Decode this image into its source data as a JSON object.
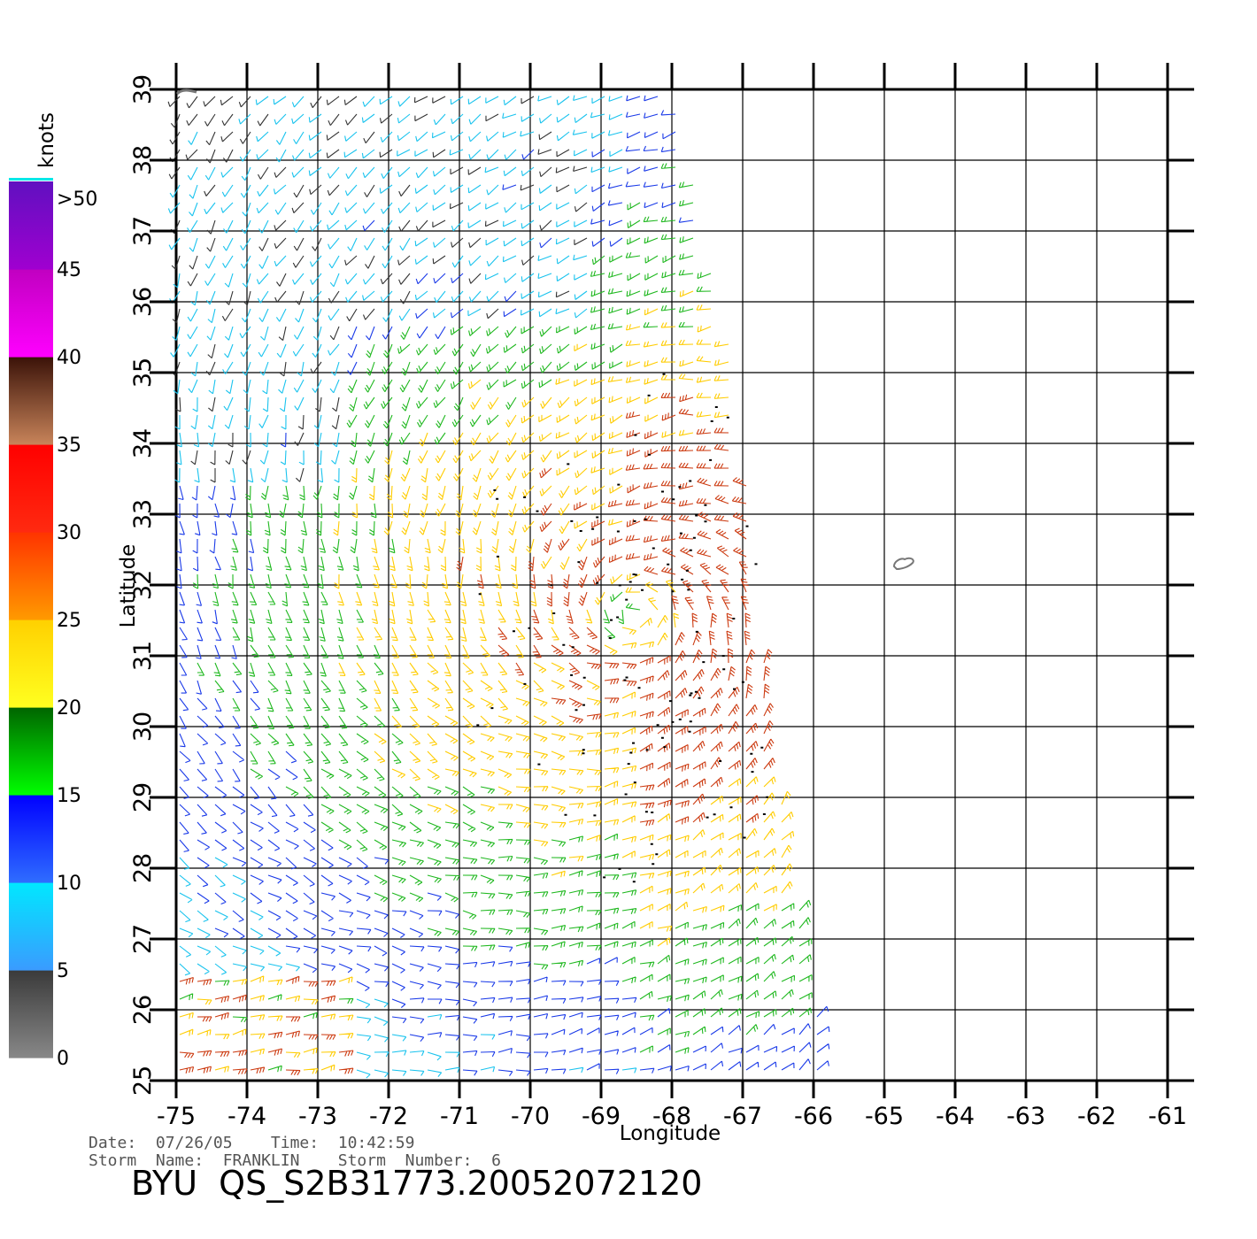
{
  "map": {
    "lon_range": [
      -75,
      -61
    ],
    "lat_range": [
      25,
      39
    ],
    "lon_ticks": [
      "-75",
      "-74",
      "-73",
      "-72",
      "-71",
      "-70",
      "-69",
      "-68",
      "-67",
      "-66",
      "-65",
      "-64",
      "-63",
      "-62",
      "-61"
    ],
    "lat_ticks": [
      "25",
      "26",
      "27",
      "28",
      "29",
      "30",
      "31",
      "32",
      "33",
      "34",
      "35",
      "36",
      "37",
      "38",
      "39"
    ],
    "xlabel": "Longitude",
    "ylabel": "Latitude",
    "grid": true,
    "swath_east_edge_lon": {
      "at_lat_39": -68.0,
      "at_lat_35": -67.1,
      "at_lat_30": -66.6,
      "at_lat_25": -65.8
    },
    "storm_center": {
      "lon": -68.5,
      "lat": 31.6
    },
    "island": {
      "name": "",
      "lon": -64.8,
      "lat": 32.3
    }
  },
  "colorbar": {
    "unit": "knots",
    "labels": [
      "0",
      "5",
      "10",
      "15",
      "20",
      "25",
      "30",
      "35",
      "40",
      "45",
      ">50"
    ],
    "segments": [
      {
        "range": "0-5",
        "top": "#3a3a3a",
        "bottom": "#888888"
      },
      {
        "range": "5-10",
        "top": "#00e8ff",
        "bottom": "#3a9bff"
      },
      {
        "range": "10-15",
        "top": "#0000ff",
        "bottom": "#2f6dff"
      },
      {
        "range": "15-20",
        "top": "#006400",
        "bottom": "#00ff00"
      },
      {
        "range": "20-25",
        "top": "#ffd000",
        "bottom": "#ffff20"
      },
      {
        "range": "25-30",
        "top": "#ff3300",
        "bottom": "#ff9a00"
      },
      {
        "range": "30-35",
        "top": "#ff0000",
        "bottom": "#ff2a10"
      },
      {
        "range": "35-40",
        "top": "#3a1208",
        "bottom": "#c8845a"
      },
      {
        "range": "40-45",
        "top": "#c000c0",
        "bottom": "#ff00ff"
      },
      {
        "range": "45-50",
        "top": "#6010c0",
        "bottom": "#a000d0"
      }
    ]
  },
  "info": {
    "date_line": "Date:  07/26/05    Time:  10:42:59",
    "storm_line": "Storm  Name:  FRANKLIN    Storm  Number:  6",
    "title": "BYU  QS_S2B31773.20052072120"
  },
  "colors": {
    "calm": "#333333",
    "light": "#19c3ee",
    "moderate": "#1a3ae8",
    "fresh": "#1fb81f",
    "strong": "#ffcc00",
    "gale": "#cc3a10",
    "coast": "#777777"
  }
}
